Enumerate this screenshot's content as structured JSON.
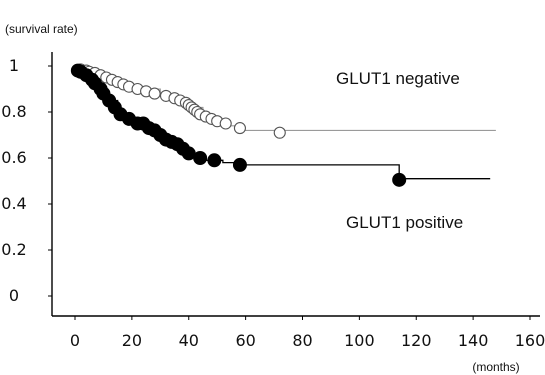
{
  "chart_data": {
    "type": "line",
    "subtype": "kaplan-meier-survival",
    "title": "",
    "ylabel": "(survival rate)",
    "xlabel": "(months)",
    "xlim": [
      0,
      160
    ],
    "ylim": [
      0,
      1
    ],
    "x_ticks": [
      0,
      20,
      40,
      60,
      80,
      100,
      120,
      140,
      160
    ],
    "y_ticks": [
      0,
      0.2,
      0.4,
      0.6,
      0.8,
      1
    ],
    "y_tick_labels": [
      "0",
      "0.2",
      "0.4",
      "0.6",
      "0.8",
      "1"
    ],
    "grid": false,
    "legend": "none",
    "series": [
      {
        "name": "GLUT1 negative",
        "color": "#9a9a9a",
        "marker": "open-circle",
        "steps": [
          [
            0,
            1.0
          ],
          [
            4,
            0.99
          ],
          [
            8,
            0.97
          ],
          [
            12,
            0.95
          ],
          [
            16,
            0.93
          ],
          [
            20,
            0.91
          ],
          [
            25,
            0.9
          ],
          [
            30,
            0.88
          ],
          [
            35,
            0.86
          ],
          [
            39,
            0.84
          ],
          [
            42,
            0.82
          ],
          [
            45,
            0.79
          ],
          [
            49,
            0.77
          ],
          [
            54,
            0.74
          ],
          [
            58,
            0.72
          ],
          [
            148,
            0.72
          ]
        ],
        "censored": [
          [
            2,
            0.985
          ],
          [
            4,
            0.98
          ],
          [
            5,
            0.975
          ],
          [
            7,
            0.97
          ],
          [
            9,
            0.96
          ],
          [
            11,
            0.95
          ],
          [
            13,
            0.94
          ],
          [
            15,
            0.93
          ],
          [
            17,
            0.92
          ],
          [
            19,
            0.91
          ],
          [
            22,
            0.9
          ],
          [
            25,
            0.89
          ],
          [
            28,
            0.88
          ],
          [
            32,
            0.87
          ],
          [
            35,
            0.86
          ],
          [
            37,
            0.85
          ],
          [
            39,
            0.84
          ],
          [
            40,
            0.83
          ],
          [
            41,
            0.82
          ],
          [
            42,
            0.81
          ],
          [
            43,
            0.8
          ],
          [
            44,
            0.79
          ],
          [
            46,
            0.78
          ],
          [
            48,
            0.77
          ],
          [
            50,
            0.76
          ],
          [
            53,
            0.75
          ],
          [
            58,
            0.73
          ],
          [
            72,
            0.71
          ]
        ]
      },
      {
        "name": "GLUT1 positive",
        "color": "#000000",
        "marker": "filled-circle",
        "steps": [
          [
            0,
            1.0
          ],
          [
            3,
            0.96
          ],
          [
            6,
            0.93
          ],
          [
            9,
            0.89
          ],
          [
            12,
            0.85
          ],
          [
            15,
            0.8
          ],
          [
            18,
            0.77
          ],
          [
            22,
            0.75
          ],
          [
            26,
            0.73
          ],
          [
            30,
            0.69
          ],
          [
            34,
            0.66
          ],
          [
            38,
            0.63
          ],
          [
            42,
            0.61
          ],
          [
            46,
            0.59
          ],
          [
            52,
            0.58
          ],
          [
            56,
            0.57
          ],
          [
            114,
            0.51
          ],
          [
            146,
            0.51
          ]
        ],
        "censored": [
          [
            1,
            0.98
          ],
          [
            2,
            0.975
          ],
          [
            4,
            0.96
          ],
          [
            6,
            0.94
          ],
          [
            7,
            0.925
          ],
          [
            9,
            0.9
          ],
          [
            10,
            0.88
          ],
          [
            12,
            0.85
          ],
          [
            14,
            0.82
          ],
          [
            16,
            0.79
          ],
          [
            19,
            0.77
          ],
          [
            22,
            0.75
          ],
          [
            24,
            0.75
          ],
          [
            26,
            0.73
          ],
          [
            28,
            0.72
          ],
          [
            30,
            0.7
          ],
          [
            32,
            0.68
          ],
          [
            34,
            0.67
          ],
          [
            36,
            0.66
          ],
          [
            38,
            0.64
          ],
          [
            40,
            0.62
          ],
          [
            44,
            0.6
          ],
          [
            49,
            0.59
          ],
          [
            58,
            0.57
          ],
          [
            114,
            0.505
          ]
        ]
      }
    ]
  }
}
